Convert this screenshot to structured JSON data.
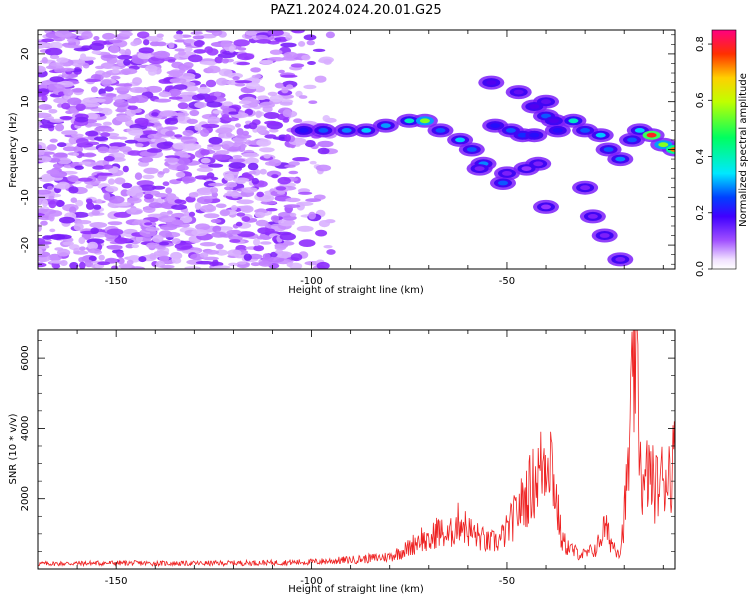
{
  "figure": {
    "title": "PAZ1.2024.024.20.01.G25"
  },
  "chart_data": [
    {
      "type": "heatmap",
      "xlabel": "Height of straight line (km)",
      "ylabel": "Frequency (Hz)",
      "xlim": [
        -170,
        -7
      ],
      "ylim": [
        -25,
        25
      ],
      "xticks": [
        -150,
        -100,
        -50
      ],
      "yticks": [
        -20,
        -10,
        0,
        10,
        20
      ],
      "colorbar": {
        "label": "Normalized spectral amplitude",
        "range": [
          0.0,
          0.85
        ],
        "ticks": [
          0.0,
          0.2,
          0.4,
          0.6,
          0.8
        ],
        "colormap": "rainbow (white → violet → blue → cyan → green → yellow → red)"
      },
      "ridge": [
        {
          "x": -102,
          "y": 4,
          "v": 0.25
        },
        {
          "x": -97,
          "y": 4,
          "v": 0.3
        },
        {
          "x": -91,
          "y": 4,
          "v": 0.32
        },
        {
          "x": -86,
          "y": 4,
          "v": 0.35
        },
        {
          "x": -81,
          "y": 5,
          "v": 0.33
        },
        {
          "x": -75,
          "y": 6,
          "v": 0.4
        },
        {
          "x": -71,
          "y": 6,
          "v": 0.55
        },
        {
          "x": -67,
          "y": 4,
          "v": 0.3
        },
        {
          "x": -62,
          "y": 2,
          "v": 0.35
        },
        {
          "x": -59,
          "y": 0,
          "v": 0.3
        },
        {
          "x": -56,
          "y": -3,
          "v": 0.32
        },
        {
          "x": -51,
          "y": -7,
          "v": 0.3
        },
        {
          "x": -53,
          "y": 5,
          "v": 0.25
        },
        {
          "x": -49,
          "y": 4,
          "v": 0.3
        },
        {
          "x": -46,
          "y": 3,
          "v": 0.28
        },
        {
          "x": -43,
          "y": 3,
          "v": 0.25
        },
        {
          "x": -40,
          "y": 7,
          "v": 0.3
        },
        {
          "x": -37,
          "y": 4,
          "v": 0.25
        },
        {
          "x": -33,
          "y": 6,
          "v": 0.4
        },
        {
          "x": -30,
          "y": 4,
          "v": 0.3
        },
        {
          "x": -26,
          "y": 3,
          "v": 0.35
        },
        {
          "x": -24,
          "y": 0,
          "v": 0.3
        },
        {
          "x": -21,
          "y": -2,
          "v": 0.32
        },
        {
          "x": -18,
          "y": 2,
          "v": 0.3
        },
        {
          "x": -16,
          "y": 4,
          "v": 0.35
        },
        {
          "x": -13,
          "y": 3,
          "v": 0.82
        },
        {
          "x": -10,
          "y": 1,
          "v": 0.55
        },
        {
          "x": -7,
          "y": 0,
          "v": 0.75
        }
      ],
      "branches": [
        {
          "x": -54,
          "y": 14,
          "v": 0.2
        },
        {
          "x": -47,
          "y": 12,
          "v": 0.18
        },
        {
          "x": -43,
          "y": 9,
          "v": 0.2
        },
        {
          "x": -40,
          "y": 10,
          "v": 0.18
        },
        {
          "x": -38,
          "y": 6,
          "v": 0.2
        },
        {
          "x": -30,
          "y": -8,
          "v": 0.15
        },
        {
          "x": -28,
          "y": -14,
          "v": 0.15
        },
        {
          "x": -25,
          "y": -18,
          "v": 0.15
        },
        {
          "x": -21,
          "y": -23,
          "v": 0.15
        },
        {
          "x": -45,
          "y": -4,
          "v": 0.12
        },
        {
          "x": -40,
          "y": -12,
          "v": 0.12
        },
        {
          "x": -42,
          "y": -3,
          "v": 0.15
        },
        {
          "x": -57,
          "y": -4,
          "v": 0.15
        },
        {
          "x": -50,
          "y": -5,
          "v": 0.15
        }
      ]
    },
    {
      "type": "line",
      "xlabel": "Height of straight line (km)",
      "ylabel": "SNR (10 * v/v)",
      "xlim": [
        -170,
        -7
      ],
      "ylim": [
        0,
        6800
      ],
      "xticks": [
        -150,
        -100,
        -50
      ],
      "yticks": [
        2000,
        4000,
        6000
      ],
      "series": [
        {
          "color": "#ee2222",
          "points": [
            [
              -170,
              150
            ],
            [
              -160,
              160
            ],
            [
              -150,
              170
            ],
            [
              -140,
              160
            ],
            [
              -130,
              160
            ],
            [
              -120,
              170
            ],
            [
              -110,
              180
            ],
            [
              -100,
              200
            ],
            [
              -95,
              230
            ],
            [
              -90,
              260
            ],
            [
              -85,
              300
            ],
            [
              -80,
              350
            ],
            [
              -75,
              600
            ],
            [
              -72,
              900
            ],
            [
              -70,
              700
            ],
            [
              -68,
              1100
            ],
            [
              -65,
              900
            ],
            [
              -62,
              1400
            ],
            [
              -60,
              1100
            ],
            [
              -57,
              900
            ],
            [
              -55,
              750
            ],
            [
              -52,
              800
            ],
            [
              -50,
              1100
            ],
            [
              -48,
              1500
            ],
            [
              -46,
              1900
            ],
            [
              -44,
              2300
            ],
            [
              -42,
              2700
            ],
            [
              -40,
              3200
            ],
            [
              -39,
              3500
            ],
            [
              -38,
              2500
            ],
            [
              -36,
              800
            ],
            [
              -33,
              500
            ],
            [
              -30,
              400
            ],
            [
              -27,
              600
            ],
            [
              -25,
              1200
            ],
            [
              -23,
              700
            ],
            [
              -21,
              500
            ],
            [
              -20,
              1500
            ],
            [
              -19,
              2800
            ],
            [
              -18,
              4800
            ],
            [
              -17,
              6800
            ],
            [
              -16,
              3500
            ],
            [
              -15,
              2000
            ],
            [
              -14,
              2800
            ],
            [
              -12,
              2300
            ],
            [
              -10,
              2600
            ],
            [
              -8,
              2900
            ],
            [
              -7,
              3100
            ]
          ]
        }
      ]
    }
  ]
}
